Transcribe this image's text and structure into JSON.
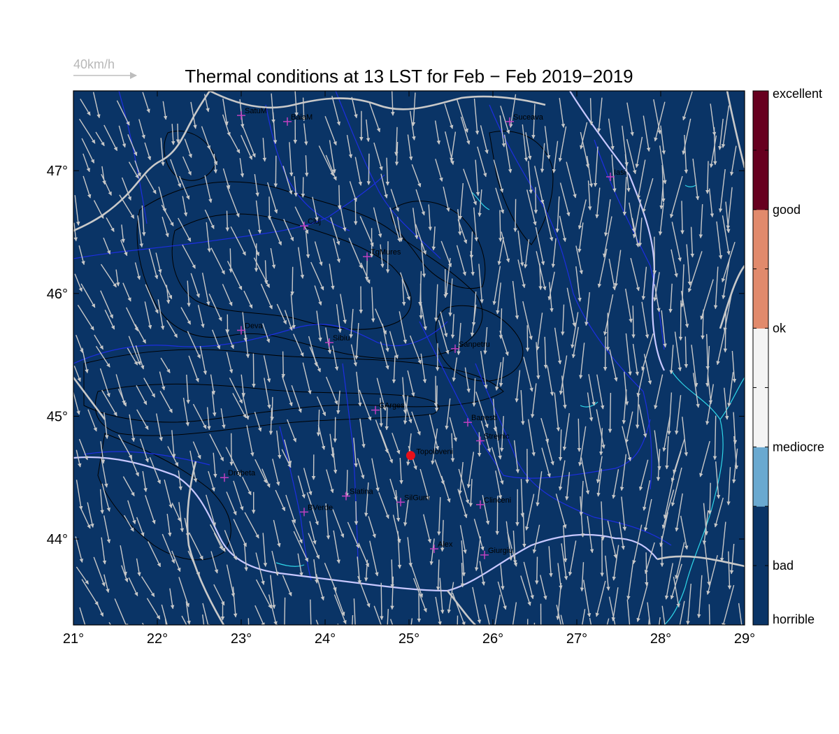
{
  "title": "Thermal conditions at 13 LST for Feb − Feb  2019−2019",
  "reference_vector": {
    "label": "40km/h",
    "color": "#bdbdbd"
  },
  "colors": {
    "background": "#0a3466",
    "country_border": "#c9c9c9",
    "river": "#1d2ee0",
    "danube": "#c8c8ff",
    "lake": "#2fd6e8",
    "contour": "#000000",
    "wind_arrow": "#c8c8c8",
    "station_marker": "#c040c0",
    "highlight_point": "#e8101a"
  },
  "map": {
    "lon_range": [
      21,
      29
    ],
    "lat_range": [
      43.3,
      47.65
    ],
    "lon_ticks": [
      "21°",
      "22°",
      "23°",
      "24°",
      "25°",
      "26°",
      "27°",
      "28°",
      "29°"
    ],
    "lon_tick_values": [
      21,
      22,
      23,
      24,
      25,
      26,
      27,
      28,
      29
    ],
    "lat_ticks": [
      "44°",
      "45°",
      "46°",
      "47°"
    ],
    "lat_tick_values": [
      44,
      45,
      46,
      47
    ]
  },
  "stations": [
    {
      "name": "SatuM",
      "lon": 23.0,
      "lat": 47.45
    },
    {
      "name": "BaiaM",
      "lon": 23.55,
      "lat": 47.4
    },
    {
      "name": "Suceava",
      "lon": 26.2,
      "lat": 47.4
    },
    {
      "name": "Iasi",
      "lon": 27.4,
      "lat": 46.95
    },
    {
      "name": "Cluj",
      "lon": 23.75,
      "lat": 46.55
    },
    {
      "name": "TgMures",
      "lon": 24.5,
      "lat": 46.3
    },
    {
      "name": "Deva",
      "lon": 23.0,
      "lat": 45.7
    },
    {
      "name": "Sibiu",
      "lon": 24.05,
      "lat": 45.6
    },
    {
      "name": "Sanpetru",
      "lon": 25.55,
      "lat": 45.55
    },
    {
      "name": "CArges",
      "lon": 24.6,
      "lat": 45.05
    },
    {
      "name": "Banesti",
      "lon": 25.7,
      "lat": 44.95
    },
    {
      "name": "Strejnic",
      "lon": 25.85,
      "lat": 44.8
    },
    {
      "name": "Drobeta",
      "lon": 22.8,
      "lat": 44.5
    },
    {
      "name": "Slatina",
      "lon": 24.25,
      "lat": 44.35
    },
    {
      "name": "SilGum",
      "lon": 24.9,
      "lat": 44.3
    },
    {
      "name": "Clinceni",
      "lon": 25.85,
      "lat": 44.28
    },
    {
      "name": "BVerde",
      "lon": 23.75,
      "lat": 44.22
    },
    {
      "name": "Alex",
      "lon": 25.3,
      "lat": 43.92
    },
    {
      "name": "Giurgiu",
      "lon": 25.9,
      "lat": 43.87
    }
  ],
  "highlight": {
    "name": "Topoloveni",
    "lon": 25.02,
    "lat": 44.68
  },
  "colorbar": {
    "labels": [
      "excellent",
      "good",
      "ok",
      "mediocre",
      "bad",
      "horrible"
    ],
    "segments": [
      {
        "from": 0,
        "to": 1,
        "color": "#0a3466"
      },
      {
        "from": 1,
        "to": 2,
        "color": "#0a3466"
      },
      {
        "from": 2,
        "to": 3,
        "color": "#6aa9d0"
      },
      {
        "from": 3,
        "to": 4,
        "color": "#f4f4f4"
      },
      {
        "from": 4,
        "to": 5,
        "color": "#f4f4f4"
      },
      {
        "from": 5,
        "to": 6,
        "color": "#e18a6c"
      },
      {
        "from": 6,
        "to": 7,
        "color": "#e18a6c"
      },
      {
        "from": 7,
        "to": 8,
        "color": "#67001f"
      },
      {
        "from": 8,
        "to": 9,
        "color": "#67001f"
      }
    ]
  }
}
